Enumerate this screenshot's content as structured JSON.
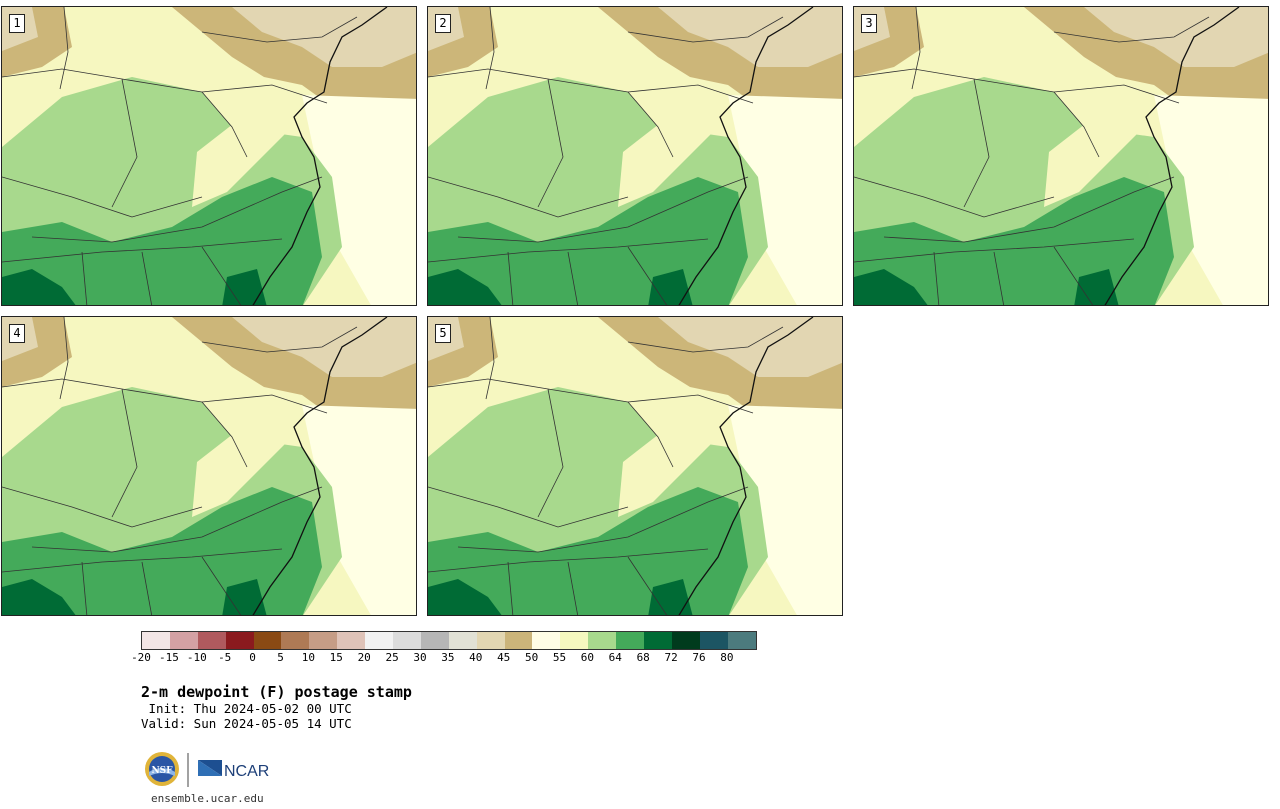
{
  "panels": [
    {
      "number": "1"
    },
    {
      "number": "2"
    },
    {
      "number": "3"
    },
    {
      "number": "4"
    },
    {
      "number": "5"
    }
  ],
  "colorbar": {
    "colors": [
      "#f3e6e6",
      "#d4a1a4",
      "#b05a5e",
      "#8b1a1e",
      "#8a4a14",
      "#ae7a55",
      "#c69d86",
      "#dfc3b8",
      "#f2f2f2",
      "#dcdcdc",
      "#b6b6b6",
      "#e1e1d5",
      "#e2d6b2",
      "#cbb47a",
      "#fffde6",
      "#f5f8bf",
      "#a8d98d",
      "#44aa5a",
      "#006b35",
      "#003b1d",
      "#1c5563",
      "#4c7b7e"
    ],
    "ticks": [
      "-20",
      "-15",
      "-10",
      "-5",
      "0",
      "5",
      "10",
      "15",
      "20",
      "25",
      "30",
      "35",
      "40",
      "45",
      "50",
      "55",
      "60",
      "64",
      "68",
      "72",
      "76",
      "80"
    ]
  },
  "title": "2-m dewpoint (F) postage stamp",
  "init": " Init: Thu 2024-05-02 00 UTC",
  "valid": "Valid: Sun 2024-05-05 14 UTC",
  "logos": {
    "nsf": "NSF",
    "ncar": "NCAR"
  },
  "site": "ensemble.ucar.edu"
}
